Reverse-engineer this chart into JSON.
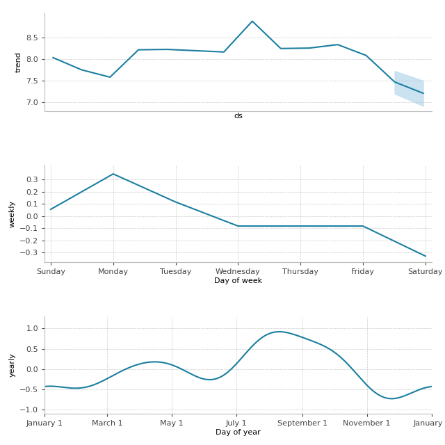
{
  "line_color": "#1a7fa0",
  "uncertainty_color": "#c6dff0",
  "grid_color": "#c0c0c0",
  "background_color": "#ffffff",
  "trend": {
    "ylabel": "trend",
    "xlabel": "ds",
    "y_points": [
      8.03,
      7.75,
      7.58,
      8.21,
      8.22,
      8.19,
      8.16,
      8.87,
      8.24,
      8.25,
      8.33,
      8.08,
      7.47,
      7.21
    ],
    "uncertainty_lower": [
      7.2,
      6.92
    ],
    "uncertainty_upper": [
      7.72,
      7.5
    ],
    "ylim": [
      6.8,
      9.05
    ],
    "yticks": [
      7.0,
      7.5,
      8.0,
      8.5
    ]
  },
  "weekly": {
    "ylabel": "weekly",
    "xlabel": "Day of week",
    "days": [
      "Sunday",
      "Monday",
      "Tuesday",
      "Wednesday",
      "Thursday",
      "Friday",
      "Saturday"
    ],
    "values": [
      0.055,
      0.345,
      0.115,
      -0.082,
      -0.082,
      -0.082,
      -0.328
    ],
    "ylim": [
      -0.38,
      0.42
    ],
    "yticks": [
      -0.3,
      -0.2,
      -0.1,
      0.0,
      0.1,
      0.2,
      0.3
    ]
  },
  "yearly": {
    "ylabel": "yearly",
    "xlabel": "Day of year",
    "tick_labels": [
      "January 1",
      "March 1",
      "May 1",
      "July 1",
      "September 1",
      "November 1",
      "January 1"
    ],
    "tick_days": [
      1,
      60,
      121,
      182,
      244,
      305,
      366
    ],
    "ylim": [
      -1.1,
      1.3
    ],
    "yticks": [
      -1.0,
      -0.5,
      0.0,
      0.5,
      1.0
    ],
    "curve_params": {
      "amplitudes": [
        0.52,
        0.38,
        0.18,
        0.1,
        0.06
      ],
      "frequencies": [
        1,
        2,
        3,
        4,
        5
      ],
      "phases": [
        -1.95,
        -0.55,
        2.2,
        0.8,
        2.5
      ]
    }
  }
}
